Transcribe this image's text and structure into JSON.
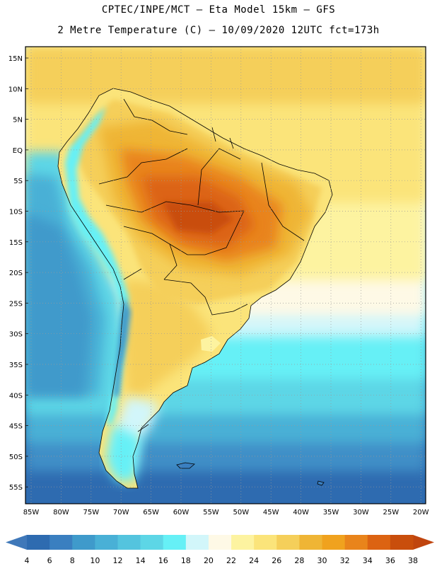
{
  "header": {
    "line1": "CPTEC/INPE/MCT –  Eta Model 15km – GFS",
    "line2": "2 Metre Temperature (C) – 10/09/2020 12UTC fct=173h"
  },
  "map": {
    "lat_labels": [
      "15N",
      "10N",
      "5N",
      "EQ",
      "5S",
      "10S",
      "15S",
      "20S",
      "25S",
      "30S",
      "35S",
      "40S",
      "45S",
      "50S",
      "55S"
    ],
    "lon_labels": [
      "85W",
      "80W",
      "75W",
      "70W",
      "65W",
      "60W",
      "55W",
      "50W",
      "45W",
      "40W",
      "35W",
      "30W",
      "25W",
      "20W"
    ]
  },
  "colorbar": {
    "labels": [
      "4",
      "6",
      "8",
      "10",
      "12",
      "14",
      "16",
      "18",
      "20",
      "22",
      "24",
      "26",
      "28",
      "30",
      "32",
      "34",
      "36",
      "38"
    ],
    "colors": [
      "#2e6bb0",
      "#3a7fc0",
      "#3f9acb",
      "#49b0d6",
      "#54c4de",
      "#5dd6e6",
      "#66f0f6",
      "#d2f6fa",
      "#fef9e6",
      "#fdf3a0",
      "#fbe47a",
      "#f5cf5a",
      "#efb535",
      "#f0a21e",
      "#e9841b",
      "#dc6312",
      "#c94e0c"
    ],
    "low_color": "#3f78b9",
    "high_color": "#c0450e"
  }
}
